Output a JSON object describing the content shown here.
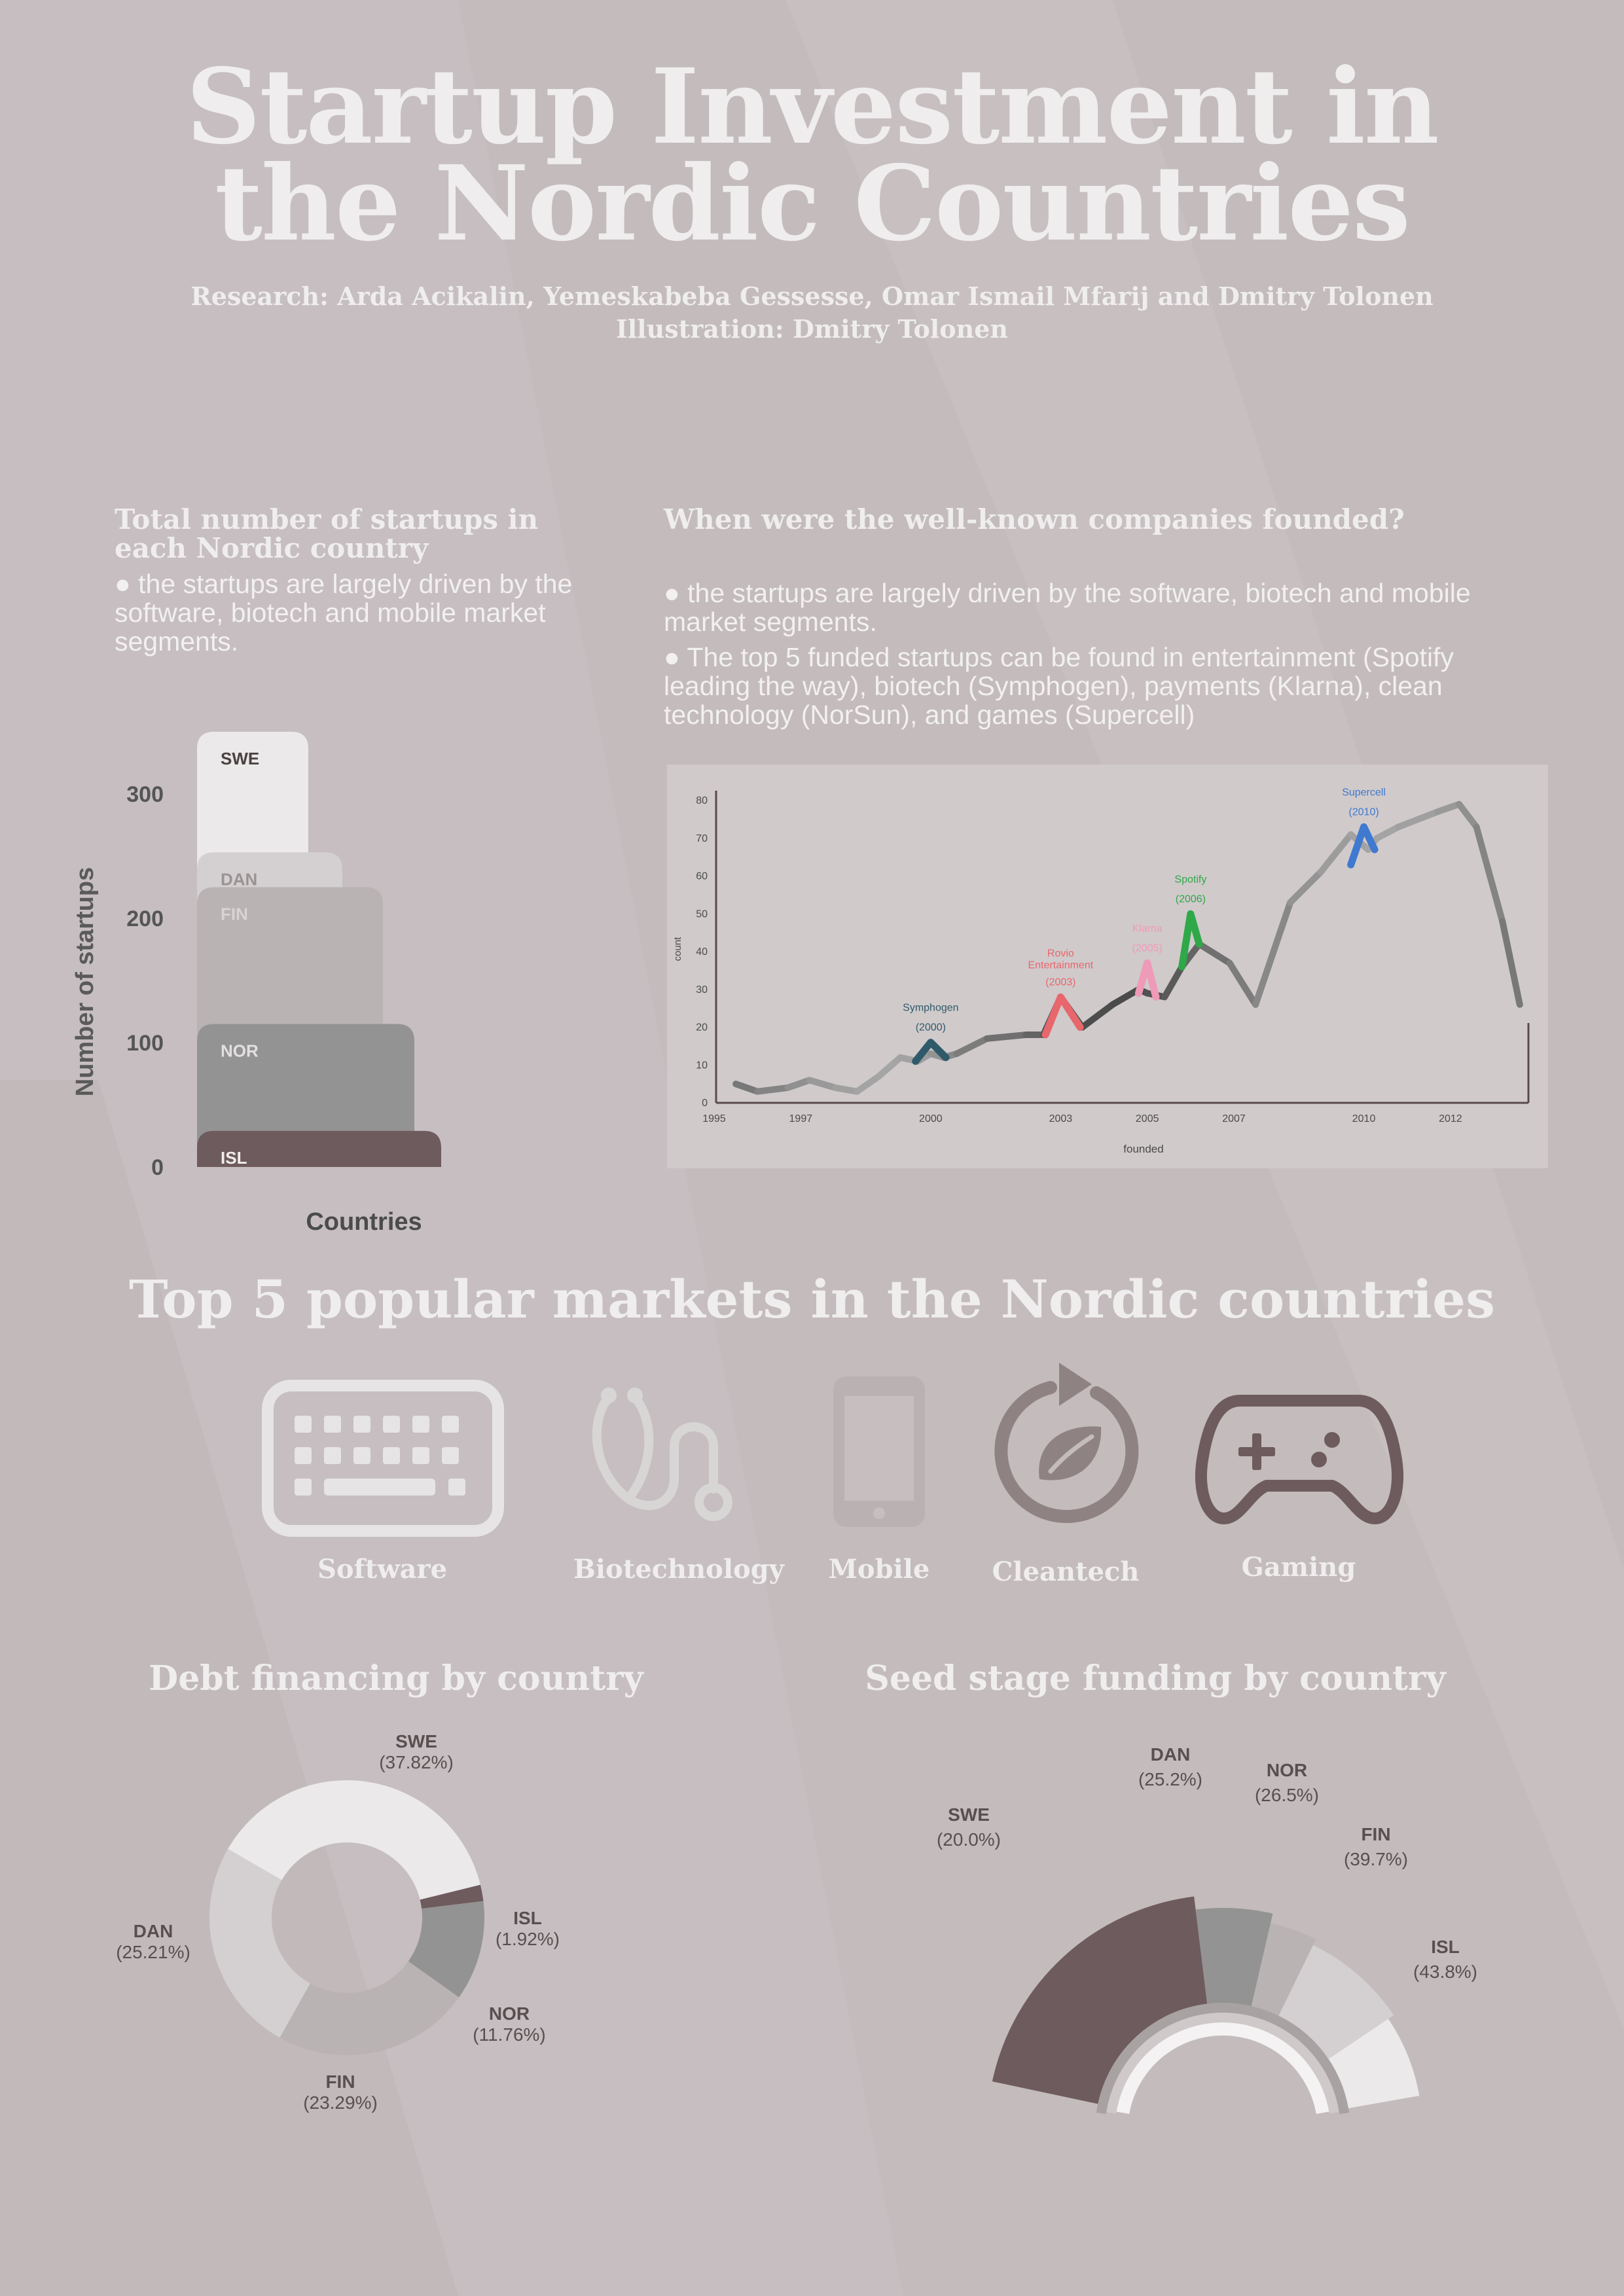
{
  "header": {
    "title_line1": "Startup Investment in",
    "title_line2": "the Nordic Countries",
    "research": "Research: Arda Acikalin, Yemeskabeba Gessesse, Omar Ismail Mfarij and Dmitry Tolonen",
    "illustration": "Illustration: Dmitry Tolonen"
  },
  "startups_section": {
    "title": "Total number of startups in each Nordic country",
    "bullet": "● the startups are largely driven by the software, biotech and mobile market segments."
  },
  "founded_section": {
    "title": "When were the well-known companies founded?",
    "bullet1": "● the startups are largely driven by the software, biotech and mobile market segments.",
    "bullet2": "● The top 5 funded startups can be found in entertainment (Spotify leading the way), biotech (Symphogen), payments (Klarna), clean technology (NorSun), and games (Supercell)"
  },
  "markets": {
    "title": "Top 5 popular markets in the Nordic countries",
    "items": [
      {
        "label": "Software",
        "icon": "keyboard-icon"
      },
      {
        "label": "Biotechnology",
        "icon": "stethoscope-icon"
      },
      {
        "label": "Mobile",
        "icon": "smartphone-icon"
      },
      {
        "label": "Cleantech",
        "icon": "recycle-leaf-icon"
      },
      {
        "label": "Gaming",
        "icon": "gamepad-icon"
      }
    ]
  },
  "debt_title": "Debt financing by country",
  "seed_title": "Seed stage funding by country",
  "colors": {
    "background": "#c3bbbc",
    "swe": "#ebe9e9",
    "dan": "#d4d0d1",
    "fin": "#b9b3b4",
    "nor": "#949393",
    "isl": "#6e5b5d"
  },
  "chart_data": [
    {
      "type": "bar",
      "title": "",
      "xlabel": "Countries",
      "ylabel": "Number of startups",
      "ylim": [
        0,
        300
      ],
      "yticks": [
        "0",
        "100",
        "200",
        "300"
      ],
      "categories": [
        "SWE",
        "DAN",
        "FIN",
        "NOR",
        "ISL"
      ],
      "values": [
        350,
        253,
        225,
        115,
        29
      ]
    },
    {
      "type": "line",
      "title": "",
      "xlabel": "founded",
      "ylabel": "count",
      "xlim": [
        1995,
        2013.8
      ],
      "ylim": [
        0,
        80
      ],
      "xticks": [
        "1995",
        "1997",
        "2000",
        "2003",
        "2005",
        "2007",
        "2010",
        "2012"
      ],
      "yticks": [
        "0",
        "10",
        "20",
        "30",
        "40",
        "50",
        "60",
        "70",
        "80"
      ],
      "x": [
        1995.5,
        1996,
        1996.7,
        1997.2,
        1997.8,
        1998.3,
        1998.8,
        1999.3,
        1999.7,
        2000,
        2000.3,
        2000.6,
        2001.3,
        2002.2,
        2002.6,
        2003,
        2003.5,
        2004.2,
        2004.8,
        2005,
        2005.4,
        2005.8,
        2006.2,
        2006.9,
        2007.5,
        2008.3,
        2009.0,
        2009.7,
        2010.1,
        2010.3,
        2010.8,
        2011.7,
        2012.2,
        2012.6,
        2013.2,
        2013.6
      ],
      "values": [
        5,
        3,
        4,
        6,
        4,
        3,
        7,
        12,
        11,
        13,
        12,
        13,
        17,
        18,
        18,
        28,
        20,
        26,
        30,
        29,
        28,
        36,
        42,
        37,
        26,
        53,
        61,
        71,
        67,
        70,
        73,
        77,
        79,
        73,
        48,
        26
      ],
      "highlights": [
        {
          "name": "Symphogen",
          "year": "(2000)",
          "color": "#2f5a6a",
          "x": [
            1999.65,
            2000,
            2000.35
          ],
          "y": [
            11,
            16,
            12
          ]
        },
        {
          "name": "Rovio Entertainment",
          "year": "(2003)",
          "color": "#e8676c",
          "x": [
            2002.65,
            2003,
            2003.45
          ],
          "y": [
            18,
            28,
            20
          ]
        },
        {
          "name": "Klarna",
          "year": "(2005)",
          "color": "#ef9ab8",
          "x": [
            2004.8,
            2005,
            2005.2
          ],
          "y": [
            29,
            37,
            28
          ]
        },
        {
          "name": "Spotify",
          "year": "(2006)",
          "color": "#2fa848",
          "x": [
            2005.8,
            2006,
            2006.2
          ],
          "y": [
            36,
            50,
            42
          ]
        },
        {
          "name": "Supercell",
          "year": "(2010)",
          "color": "#3f79d0",
          "x": [
            2009.7,
            2010,
            2010.25
          ],
          "y": [
            63,
            73,
            67
          ]
        }
      ]
    },
    {
      "type": "pie",
      "title": "Debt financing by country",
      "labels": [
        "SWE",
        "ISL",
        "NOR",
        "FIN",
        "DAN"
      ],
      "values": [
        37.82,
        1.92,
        11.76,
        23.29,
        25.21
      ],
      "value_labels": [
        "(37.82%)",
        "(1.92%)",
        "(11.76%)",
        "(23.29%)",
        "(25.21%)"
      ]
    },
    {
      "type": "pie",
      "title": "Seed stage funding by country",
      "labels": [
        "SWE",
        "DAN",
        "NOR",
        "FIN",
        "ISL"
      ],
      "values": [
        20.0,
        25.2,
        26.5,
        39.7,
        43.8
      ],
      "value_labels": [
        "(20.0%)",
        "(25.2%)",
        "(26.5%)",
        "(39.7%)",
        "(43.8%)"
      ]
    }
  ]
}
